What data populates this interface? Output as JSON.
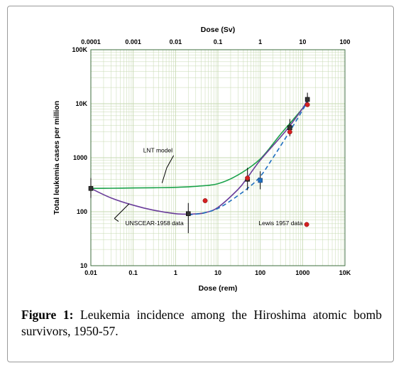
{
  "figure": {
    "label": "Figure 1:",
    "caption": "Leukemia incidence among the Hiroshima atomic bomb survivors, 1950-57."
  },
  "chart_data": {
    "type": "line",
    "title": "",
    "xlabel": "Dose (rem)",
    "x2label": "Dose (Sv)",
    "ylabel": "Total leukemia cases per million",
    "xscale": "log",
    "yscale": "log",
    "xlim": [
      0.01,
      10000
    ],
    "ylim": [
      10,
      100000
    ],
    "x2lim": [
      0.0001,
      100
    ],
    "grid": true,
    "xticks": [
      {
        "value": 0.01,
        "label": "0.01"
      },
      {
        "value": 0.1,
        "label": "0.1"
      },
      {
        "value": 1,
        "label": "1"
      },
      {
        "value": 10,
        "label": "10"
      },
      {
        "value": 100,
        "label": "100"
      },
      {
        "value": 1000,
        "label": "1000"
      },
      {
        "value": 10000,
        "label": "10K"
      }
    ],
    "x2ticks": [
      {
        "value": 0.0001,
        "label": "0.0001"
      },
      {
        "value": 0.001,
        "label": "0.001"
      },
      {
        "value": 0.01,
        "label": "0.01"
      },
      {
        "value": 0.1,
        "label": "0.1"
      },
      {
        "value": 1,
        "label": "1"
      },
      {
        "value": 10,
        "label": "10"
      },
      {
        "value": 100,
        "label": "100"
      }
    ],
    "yticks": [
      {
        "value": 10,
        "label": "10"
      },
      {
        "value": 100,
        "label": "100"
      },
      {
        "value": 1000,
        "label": "1000"
      },
      {
        "value": 10000,
        "label": "10K"
      },
      {
        "value": 100000,
        "label": "100K"
      }
    ],
    "colors": {
      "lnt": "#1aa24a",
      "unscear": "#6a3d9a",
      "dashed": "#1f6fc0",
      "lewis": "#d42020",
      "marker": "#333333",
      "frame": "#3c6e3c",
      "grid": "#c6d9b0"
    },
    "series": [
      {
        "key": "lnt",
        "style": "solid",
        "x": [
          0.01,
          0.03,
          0.1,
          0.3,
          1,
          3,
          10,
          30,
          100,
          300,
          1000,
          1300
        ],
        "y": [
          270,
          272,
          275,
          278,
          283,
          295,
          330,
          480,
          950,
          2700,
          8200,
          11200
        ]
      },
      {
        "key": "unscear",
        "style": "solid",
        "x": [
          0.01,
          0.03,
          0.1,
          0.3,
          1,
          2,
          3,
          5,
          10,
          30,
          50,
          100,
          300,
          500,
          1000,
          1300
        ],
        "y": [
          270,
          180,
          132,
          107,
          92,
          90,
          91,
          96,
          120,
          260,
          430,
          900,
          2400,
          3900,
          8200,
          11500
        ]
      },
      {
        "key": "dashed",
        "style": "dashed",
        "x": [
          2,
          3,
          5,
          10,
          20,
          50,
          100,
          200,
          500,
          1000,
          1300
        ],
        "y": [
          88,
          90,
          96,
          115,
          160,
          270,
          450,
          1000,
          3100,
          7600,
          11000
        ]
      }
    ],
    "points_lewis": [
      {
        "x": 5,
        "y": 160
      },
      {
        "x": 50,
        "y": 420
      },
      {
        "x": 500,
        "y": 3000
      },
      {
        "x": 1300,
        "y": 9600
      }
    ],
    "points_black": [
      {
        "x": 0.01,
        "y": 270,
        "lo": 180,
        "hi": 420
      },
      {
        "x": 2,
        "y": 92,
        "lo": 40,
        "hi": 145
      },
      {
        "x": 50,
        "y": 400,
        "lo": 250,
        "hi": 650
      },
      {
        "x": 500,
        "y": 3600,
        "lo": 2500,
        "hi": 5200
      },
      {
        "x": 1300,
        "y": 12000,
        "lo": 9000,
        "hi": 16000
      }
    ],
    "points_blue": [
      {
        "x": 100,
        "y": 380,
        "lo": 260,
        "hi": 560
      }
    ],
    "annotations": {
      "lnt": "LNT model",
      "unscear": "UNSCEAR-1958 data",
      "lewis": "Lewis 1957 data"
    }
  }
}
